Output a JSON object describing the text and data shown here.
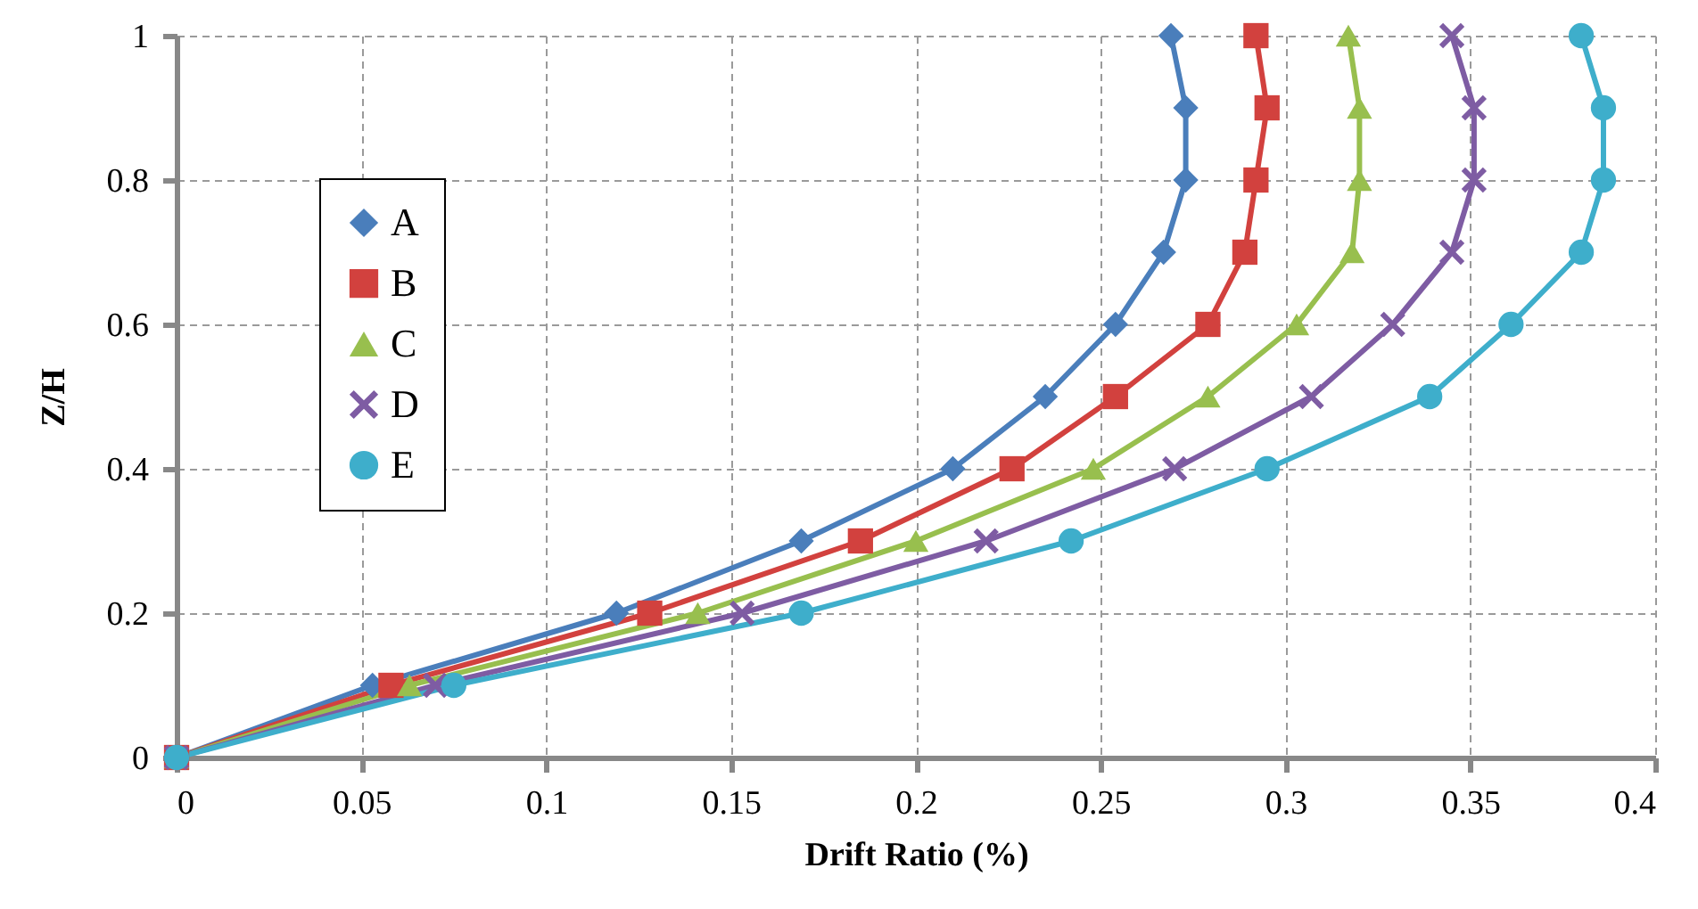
{
  "chart_data": {
    "type": "line",
    "xlabel": "Drift Ratio (%)",
    "ylabel": "Z/H",
    "xlim": [
      0,
      0.4
    ],
    "xticks": [
      0,
      0.05,
      0.1,
      0.15,
      0.2,
      0.25,
      0.3,
      0.35,
      0.4
    ],
    "ylim": [
      0,
      1
    ],
    "yticks": [
      0,
      0.2,
      0.4,
      0.6,
      0.8,
      1
    ],
    "grid": true,
    "legend": "top left",
    "line_style": "solid",
    "series": [
      {
        "name": "A",
        "color": "#4a7ebb",
        "marker": "diamond",
        "x": [
          0,
          0.053,
          0.119,
          0.169,
          0.21,
          0.235,
          0.254,
          0.267,
          0.273,
          0.273,
          0.269
        ],
        "values": [
          0,
          0.1,
          0.2,
          0.3,
          0.4,
          0.5,
          0.6,
          0.7,
          0.8,
          0.9,
          1
        ]
      },
      {
        "name": "B",
        "color": "#d2413e",
        "marker": "square",
        "x": [
          0,
          0.058,
          0.128,
          0.185,
          0.226,
          0.254,
          0.279,
          0.289,
          0.292,
          0.295,
          0.292
        ],
        "values": [
          0,
          0.1,
          0.2,
          0.3,
          0.4,
          0.5,
          0.6,
          0.7,
          0.8,
          0.9,
          1
        ]
      },
      {
        "name": "C",
        "color": "#98bf4e",
        "marker": "triangle",
        "x": [
          0,
          0.063,
          0.141,
          0.2,
          0.248,
          0.279,
          0.303,
          0.318,
          0.32,
          0.32,
          0.317
        ],
        "values": [
          0,
          0.1,
          0.2,
          0.3,
          0.4,
          0.5,
          0.6,
          0.7,
          0.8,
          0.9,
          1
        ]
      },
      {
        "name": "D",
        "color": "#7e5ca3",
        "marker": "cross",
        "x": [
          0,
          0.07,
          0.153,
          0.219,
          0.27,
          0.307,
          0.329,
          0.345,
          0.351,
          0.351,
          0.345
        ],
        "values": [
          0,
          0.1,
          0.2,
          0.3,
          0.4,
          0.5,
          0.6,
          0.7,
          0.8,
          0.9,
          1
        ]
      },
      {
        "name": "E",
        "color": "#3eaecb",
        "marker": "circle",
        "x": [
          0,
          0.075,
          0.169,
          0.242,
          0.295,
          0.339,
          0.361,
          0.38,
          0.386,
          0.386,
          0.38
        ],
        "values": [
          0,
          0.1,
          0.2,
          0.3,
          0.4,
          0.5,
          0.6,
          0.7,
          0.8,
          0.9,
          1
        ]
      }
    ]
  }
}
